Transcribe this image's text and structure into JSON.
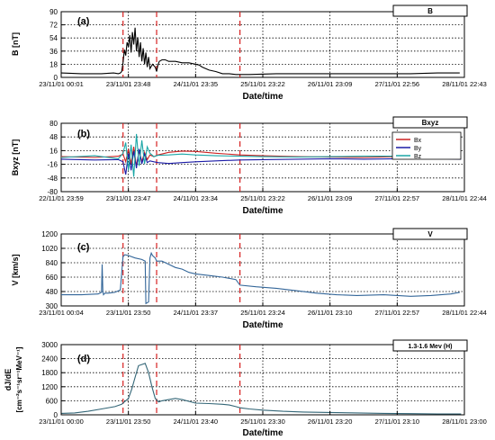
{
  "chart_data": [
    {
      "type": "line",
      "panel_label": "(a)",
      "legend_box": "B",
      "ylabel": "B [nT]",
      "xlabel": "Date/time",
      "ylim": [
        0,
        90
      ],
      "yticks": [
        "0",
        "18",
        "36",
        "54",
        "72",
        "90"
      ],
      "xticks": [
        "23/11/01 00:01",
        "23/11/01 23:48",
        "24/11/01 23:35",
        "25/11/01 23:22",
        "26/11/01 23:09",
        "27/11/01 22:56",
        "28/11/01 22:43"
      ],
      "vlines_day": [
        0.92,
        1.42,
        2.66
      ],
      "series": [
        {
          "color": "#000000",
          "x": [
            0,
            0.3,
            0.6,
            0.78,
            0.85,
            0.88,
            0.9,
            0.92,
            0.94,
            0.96,
            0.98,
            1.0,
            1.02,
            1.04,
            1.06,
            1.08,
            1.1,
            1.12,
            1.14,
            1.16,
            1.18,
            1.2,
            1.22,
            1.24,
            1.26,
            1.28,
            1.3,
            1.32,
            1.36,
            1.4,
            1.42,
            1.44,
            1.46,
            1.5,
            1.55,
            1.6,
            1.7,
            1.8,
            1.9,
            2.0,
            2.05,
            2.1,
            2.2,
            2.3,
            2.4,
            2.5,
            2.6,
            2.66,
            2.8,
            3.2,
            3.6,
            4.0,
            4.4,
            4.8,
            5.2,
            5.6,
            5.93
          ],
          "y": [
            6,
            5,
            5,
            6,
            5,
            6,
            8,
            20,
            38,
            30,
            48,
            42,
            58,
            34,
            62,
            45,
            68,
            36,
            55,
            28,
            48,
            22,
            40,
            18,
            34,
            14,
            28,
            12,
            18,
            14,
            8,
            17,
            22,
            24,
            24,
            22,
            22,
            20,
            20,
            18,
            17,
            14,
            10,
            8,
            5,
            5,
            4,
            4,
            4,
            5,
            5,
            5,
            5,
            5,
            5,
            6,
            6
          ]
        }
      ]
    },
    {
      "type": "line",
      "panel_label": "(b)",
      "legend_box": "Bxyz",
      "ylabel": "Bxyz [nT]",
      "xlabel": "Date/time",
      "ylim": [
        -80,
        80
      ],
      "yticks": [
        "-80",
        "-48",
        "-16",
        "16",
        "48",
        "80"
      ],
      "xticks": [
        "22/11/01 23:59",
        "23/11/01 23:47",
        "24/11/01 23:34",
        "25/11/01 23:22",
        "26/11/01 23:09",
        "27/11/01 22:57",
        "28/11/01 22:44"
      ],
      "vlines_day": [
        0.92,
        1.42,
        2.66
      ],
      "legend": [
        "Bx",
        "By",
        "Bz"
      ],
      "series": [
        {
          "name": "Bx",
          "color": "#cc2222",
          "x": [
            0,
            0.5,
            0.85,
            0.92,
            0.96,
            1.0,
            1.04,
            1.08,
            1.12,
            1.16,
            1.2,
            1.24,
            1.28,
            1.32,
            1.38,
            1.44,
            1.6,
            1.8,
            2.0,
            2.3,
            2.66,
            3.0,
            3.5,
            4.0,
            4.5,
            5.0,
            5.5,
            5.95
          ],
          "y": [
            2,
            0,
            3,
            8,
            -10,
            20,
            -15,
            25,
            -20,
            15,
            -10,
            12,
            -5,
            6,
            2,
            6,
            12,
            15,
            14,
            10,
            6,
            4,
            2,
            1,
            0,
            2,
            2,
            1
          ]
        },
        {
          "name": "By",
          "color": "#1a1aa6",
          "x": [
            0,
            0.5,
            0.85,
            0.92,
            0.96,
            1.0,
            1.04,
            1.08,
            1.12,
            1.16,
            1.2,
            1.24,
            1.28,
            1.32,
            1.38,
            1.44,
            1.6,
            1.8,
            2.0,
            2.3,
            2.66,
            3.0,
            3.5,
            4.0,
            4.5,
            5.0,
            5.5,
            5.95
          ],
          "y": [
            -4,
            -6,
            -5,
            -10,
            -40,
            10,
            -30,
            15,
            -25,
            20,
            -15,
            8,
            -12,
            -8,
            -10,
            -12,
            -14,
            -12,
            -10,
            -8,
            -6,
            -5,
            -4,
            -3,
            -4,
            -3,
            -2,
            -4
          ]
        },
        {
          "name": "Bz",
          "color": "#1aa6a6",
          "x": [
            0,
            0.5,
            0.85,
            0.92,
            0.96,
            1.0,
            1.04,
            1.08,
            1.12,
            1.16,
            1.2,
            1.24,
            1.28,
            1.32,
            1.38,
            1.44,
            1.6,
            1.8,
            2.0,
            2.3,
            2.66,
            3.0,
            3.5,
            4.0,
            4.5,
            5.0,
            5.5,
            5.95
          ],
          "y": [
            0,
            4,
            -3,
            10,
            35,
            -30,
            30,
            -45,
            55,
            -20,
            40,
            -15,
            25,
            10,
            2,
            5,
            6,
            8,
            6,
            4,
            3,
            2,
            1,
            2,
            3,
            3,
            2,
            1
          ]
        }
      ]
    },
    {
      "type": "line",
      "panel_label": "(c)",
      "legend_box": "V",
      "ylabel": "V [km/s]",
      "xlabel": "Date/time",
      "ylim": [
        300,
        1200
      ],
      "yticks": [
        "300",
        "480",
        "660",
        "840",
        "1020",
        "1200"
      ],
      "xticks": [
        "23/11/01 00:04",
        "23/11/01 23:50",
        "24/11/01 23:37",
        "25/11/01 23:24",
        "26/11/01 23:10",
        "27/11/01 22:57",
        "28/11/01 22:44"
      ],
      "vlines_day": [
        0.92,
        1.42,
        2.66
      ],
      "series": [
        {
          "color": "#336699",
          "x": [
            0,
            0.3,
            0.55,
            0.6,
            0.61,
            0.62,
            0.63,
            0.64,
            0.65,
            0.7,
            0.8,
            0.88,
            0.92,
            0.95,
            1.0,
            1.1,
            1.2,
            1.25,
            1.26,
            1.3,
            1.32,
            1.34,
            1.36,
            1.4,
            1.42,
            1.5,
            1.6,
            1.7,
            1.8,
            1.9,
            2.0,
            2.2,
            2.4,
            2.6,
            2.66,
            2.9,
            3.2,
            3.5,
            3.8,
            4.1,
            4.4,
            4.8,
            5.2,
            5.5,
            5.8,
            5.93
          ],
          "y": [
            440,
            440,
            450,
            470,
            820,
            480,
            440,
            450,
            460,
            460,
            470,
            500,
            920,
            940,
            930,
            900,
            880,
            860,
            330,
            350,
            900,
            960,
            930,
            900,
            860,
            860,
            820,
            780,
            760,
            720,
            700,
            680,
            660,
            630,
            560,
            540,
            520,
            490,
            460,
            440,
            430,
            440,
            420,
            430,
            450,
            470
          ]
        }
      ]
    },
    {
      "type": "line",
      "panel_label": "(d)",
      "legend_box": "1.3-1.6 Mev (H)",
      "ylabel": "dJ/dE",
      "ylabel2": "[cm⁻²s⁻¹sr⁻¹MeV⁻¹]",
      "xlabel": "Date/time",
      "ylim": [
        0,
        3000
      ],
      "yticks": [
        "0",
        "600",
        "1200",
        "1800",
        "2400",
        "3000"
      ],
      "xticks": [
        "23/11/01 00:00",
        "23/11/01 23:50",
        "24/11/01 23:40",
        "25/11/01 23:30",
        "26/11/01 23:20",
        "27/11/01 23:10",
        "28/11/01 23:00"
      ],
      "vlines_day": [
        0.92,
        1.42,
        2.66
      ],
      "series": [
        {
          "color": "#336677",
          "x": [
            0,
            0.2,
            0.4,
            0.6,
            0.8,
            0.9,
            1.0,
            1.05,
            1.1,
            1.15,
            1.2,
            1.25,
            1.3,
            1.35,
            1.4,
            1.45,
            1.5,
            1.6,
            1.7,
            1.8,
            2.0,
            2.2,
            2.4,
            2.5,
            2.6,
            2.66,
            2.8,
            3.0,
            3.3,
            3.6,
            4.0,
            4.4,
            4.8,
            5.2,
            5.6,
            5.95
          ],
          "y": [
            60,
            80,
            150,
            250,
            350,
            450,
            700,
            1100,
            1600,
            2100,
            2150,
            2200,
            1800,
            1200,
            700,
            550,
            600,
            650,
            700,
            650,
            500,
            480,
            450,
            420,
            350,
            300,
            250,
            200,
            150,
            120,
            100,
            80,
            60,
            50,
            40,
            40
          ]
        }
      ]
    }
  ]
}
